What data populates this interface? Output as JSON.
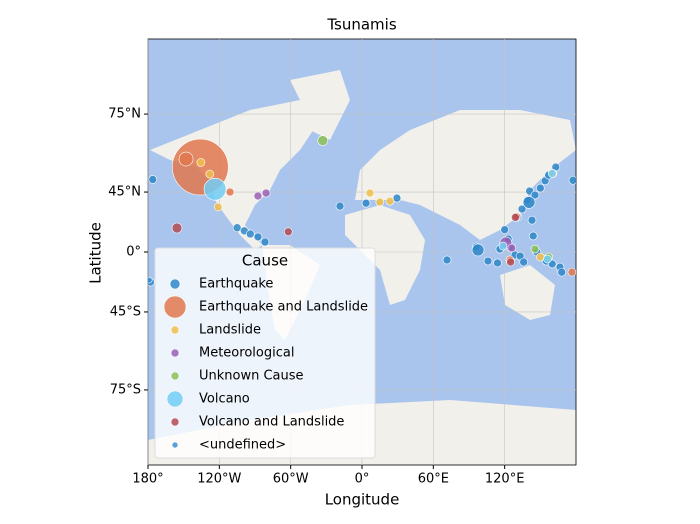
{
  "chart_data": {
    "type": "scatter",
    "title": "Tsunamis",
    "x_label": "Longitude",
    "y_label": "Latitude",
    "projection": "mercator",
    "grid": true,
    "legend_title": "Cause",
    "legend_position": "lower left",
    "xlim": [
      -180,
      180
    ],
    "ylim": [
      -85,
      85
    ],
    "xticks": [
      {
        "value": -180,
        "label": "180°"
      },
      {
        "value": -120,
        "label": "120°W"
      },
      {
        "value": -60,
        "label": "60°W"
      },
      {
        "value": 0,
        "label": "0°"
      },
      {
        "value": 60,
        "label": "60°E"
      },
      {
        "value": 120,
        "label": "120°E"
      }
    ],
    "yticks": [
      {
        "value": -75,
        "label": "75°S"
      },
      {
        "value": -45,
        "label": "45°S"
      },
      {
        "value": 0,
        "label": "0°"
      },
      {
        "value": 45,
        "label": "45°N"
      },
      {
        "value": 75,
        "label": "75°N"
      }
    ],
    "series": [
      {
        "name": "Earthquake",
        "color": "#2e86c8",
        "legend_size": 5,
        "x": [
          -176,
          -105,
          -99,
          -94,
          -87.5,
          -81.6,
          -178,
          -18.5,
          3.4,
          29.4,
          71.5,
          96,
          97.6,
          106,
          114,
          120,
          123,
          124.5,
          128.7,
          133,
          136,
          144,
          147,
          155,
          160,
          166.5,
          168,
          131,
          134.6,
          139,
          141,
          145.5,
          150,
          154,
          157,
          163,
          177.5,
          143,
          116,
          140.5
        ],
        "values": [
          52,
          20,
          17.6,
          15,
          12.6,
          8.4,
          -24.5,
          36,
          38,
          41.3,
          -6.7,
          4.2,
          1.7,
          -7.6,
          -9.2,
          18.5,
          10.9,
          4.2,
          -2.5,
          -3.4,
          -8.4,
          13.4,
          0,
          -7.6,
          -10,
          -12.6,
          -16.7,
          28.2,
          34,
          40,
          45.6,
          43.2,
          47.3,
          51.3,
          54.2,
          58,
          51.6,
          25.9,
          2.5,
          38.5
        ],
        "sizes": [
          4,
          4,
          4,
          4,
          4,
          4,
          4,
          4,
          4,
          4,
          4,
          4,
          6,
          4,
          4,
          4,
          4,
          4,
          4,
          4,
          4,
          4,
          4,
          4,
          4,
          4,
          4,
          4,
          4,
          4,
          4,
          4,
          4,
          4,
          4,
          4,
          4,
          4,
          4,
          6
        ]
      },
      {
        "name": "Earthquake and Landslide",
        "color": "#e0774e",
        "legend_size": 11,
        "x": [
          -136,
          -148,
          -111,
          130,
          124.5,
          176.6
        ],
        "values": [
          58,
          61.4,
          45,
          28.5,
          -6.7,
          -16.7
        ],
        "sizes": [
          28,
          7,
          4,
          4,
          4,
          4
        ]
      },
      {
        "name": "Landslide",
        "color": "#f0be4a",
        "legend_size": 4,
        "x": [
          -135.5,
          -128,
          -121,
          6.7,
          15,
          23.5,
          150,
          160.6
        ],
        "values": [
          60,
          54.7,
          35.4,
          44.4,
          38.8,
          39.3,
          -4.2,
          55
        ],
        "sizes": [
          4,
          4,
          4,
          4,
          4,
          4,
          4,
          4
        ]
      },
      {
        "name": "Meteorological",
        "color": "#9a5fb5",
        "legend_size": 4,
        "x": [
          -87.5,
          -80.7,
          121,
          126
        ],
        "values": [
          42.6,
          44.4,
          7.6,
          3.4
        ],
        "sizes": [
          4,
          4,
          6,
          4
        ]
      },
      {
        "name": "Unknown Cause",
        "color": "#8cbf55",
        "legend_size": 4,
        "x": [
          -33,
          145.5,
          157
        ],
        "values": [
          68,
          2.5,
          -4.2
        ],
        "sizes": [
          5,
          4,
          4
        ]
      },
      {
        "name": "Volcano",
        "color": "#72cef5",
        "legend_size": 8,
        "x": [
          -123.6,
          160,
          156,
          118.6
        ],
        "values": [
          46.7,
          55,
          -5.9,
          5
        ],
        "sizes": [
          11,
          4,
          4,
          4
        ]
      },
      {
        "name": "Volcano and Landslide",
        "color": "#b24a55",
        "legend_size": 4,
        "x": [
          -155.6,
          -62,
          129,
          125
        ],
        "values": [
          19.8,
          16.8,
          28,
          -8.4
        ],
        "sizes": [
          5,
          4,
          4,
          4
        ]
      },
      {
        "name": "<undefined>",
        "color": "#3a8fd4",
        "legend_size": 3,
        "x": [
          -179
        ],
        "values": [
          -23
        ],
        "sizes": [
          3
        ]
      }
    ]
  }
}
